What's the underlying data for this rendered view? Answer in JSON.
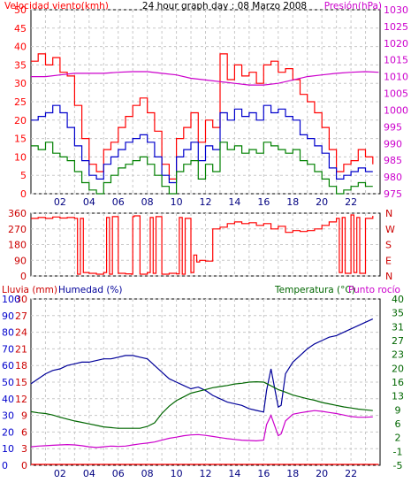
{
  "chart_data": [
    {
      "type": "line",
      "title": "24 hour graph day : 08 Marzo 2008",
      "ylabel": "Velocidad viento(kmh)",
      "y2label": "Presión(hPa)",
      "x_ticks": [
        "02",
        "04",
        "06",
        "08",
        "10",
        "12",
        "14",
        "16",
        "18",
        "20",
        "22"
      ],
      "xlim": [
        0,
        24
      ],
      "ylim": [
        0,
        50
      ],
      "y_ticks": [
        "0",
        "5",
        "10",
        "15",
        "20",
        "25",
        "30",
        "35",
        "40",
        "45",
        "50"
      ],
      "y2lim": [
        975,
        1030
      ],
      "y2_ticks": [
        "975",
        "980",
        "985",
        "990",
        "995",
        "1000",
        "1005",
        "1010",
        "1015",
        "1020",
        "1025",
        "1030"
      ],
      "grid": true,
      "colors": {
        "gust": "#ff0000",
        "avg": "#0000cc",
        "min": "#008000",
        "pressure": "#cc00cc"
      },
      "series": [
        {
          "axis": "left",
          "color": "#ff0000",
          "x": [
            0,
            0.5,
            1,
            1.5,
            2,
            2.5,
            3,
            3.5,
            4,
            4.5,
            5,
            5.5,
            6,
            6.5,
            7,
            7.5,
            8,
            8.5,
            9,
            9.5,
            10,
            10.5,
            11,
            11.5,
            12,
            12.5,
            13,
            13.5,
            14,
            14.5,
            15,
            15.5,
            16,
            16.5,
            17,
            17.5,
            18,
            18.5,
            19,
            19.5,
            20,
            20.5,
            21,
            21.5,
            22,
            22.5,
            23,
            23.5
          ],
          "values": [
            36,
            38,
            35,
            37,
            33,
            32,
            24,
            15,
            8,
            6,
            12,
            14,
            18,
            21,
            24,
            26,
            22,
            17,
            8,
            4,
            15,
            18,
            22,
            14,
            20,
            18,
            38,
            31,
            35,
            32,
            33,
            30,
            35,
            36,
            33,
            34,
            31,
            27,
            25,
            22,
            18,
            12,
            6,
            8,
            9,
            12,
            10,
            8
          ]
        },
        {
          "axis": "left",
          "color": "#0000cc",
          "x": [
            0,
            0.5,
            1,
            1.5,
            2,
            2.5,
            3,
            3.5,
            4,
            4.5,
            5,
            5.5,
            6,
            6.5,
            7,
            7.5,
            8,
            8.5,
            9,
            9.5,
            10,
            10.5,
            11,
            11.5,
            12,
            12.5,
            13,
            13.5,
            14,
            14.5,
            15,
            15.5,
            16,
            16.5,
            17,
            17.5,
            18,
            18.5,
            19,
            19.5,
            20,
            20.5,
            21,
            21.5,
            22,
            22.5,
            23,
            23.5
          ],
          "values": [
            20,
            21,
            22,
            24,
            22,
            18,
            13,
            9,
            5,
            4,
            8,
            10,
            12,
            14,
            15,
            16,
            14,
            10,
            5,
            3,
            10,
            12,
            14,
            9,
            13,
            12,
            22,
            20,
            23,
            21,
            22,
            20,
            24,
            22,
            23,
            21,
            20,
            16,
            15,
            13,
            11,
            7,
            4,
            5,
            6,
            7,
            6,
            6
          ]
        },
        {
          "axis": "left",
          "color": "#008000",
          "x": [
            0,
            0.5,
            1,
            1.5,
            2,
            2.5,
            3,
            3.5,
            4,
            4.5,
            5,
            5.5,
            6,
            6.5,
            7,
            7.5,
            8,
            8.5,
            9,
            9.5,
            10,
            10.5,
            11,
            11.5,
            12,
            12.5,
            13,
            13.5,
            14,
            14.5,
            15,
            15.5,
            16,
            16.5,
            17,
            17.5,
            18,
            18.5,
            19,
            19.5,
            20,
            20.5,
            21,
            21.5,
            22,
            22.5,
            23,
            23.5
          ],
          "values": [
            13,
            12,
            14,
            11,
            10,
            9,
            6,
            3,
            1,
            0,
            3,
            5,
            7,
            8,
            9,
            10,
            8,
            5,
            2,
            0,
            6,
            8,
            9,
            4,
            8,
            6,
            14,
            12,
            13,
            11,
            12,
            11,
            14,
            13,
            12,
            11,
            12,
            9,
            8,
            6,
            4,
            2,
            0,
            1,
            2,
            3,
            2,
            2
          ]
        },
        {
          "axis": "right",
          "color": "#cc00cc",
          "x": [
            0,
            1,
            2,
            3,
            4,
            5,
            6,
            7,
            8,
            9,
            10,
            11,
            12,
            13,
            14,
            15,
            16,
            17,
            18,
            19,
            20,
            21,
            22,
            23,
            23.9
          ],
          "values": [
            1010,
            1010,
            1010.5,
            1011,
            1011,
            1011,
            1011.3,
            1011.5,
            1011.5,
            1011,
            1010.5,
            1009.5,
            1009,
            1008.5,
            1008,
            1007.5,
            1007.5,
            1008,
            1009,
            1010,
            1010.5,
            1011,
            1011.3,
            1011.5,
            1011.3
          ]
        }
      ]
    },
    {
      "type": "scatter",
      "ylim": [
        0,
        360
      ],
      "y_ticks": [
        "0",
        "90",
        "180",
        "270",
        "360"
      ],
      "compass": [
        "N",
        "W",
        "S",
        "E",
        "N"
      ],
      "x_ticks": [],
      "grid": true,
      "series": [
        {
          "color": "#ff0000",
          "x": [
            0,
            0.5,
            1,
            1.5,
            2,
            2.5,
            3,
            3.2,
            3.4,
            3.6,
            4,
            4.5,
            5,
            5.2,
            5.4,
            5.6,
            6,
            6.5,
            6.9,
            7,
            7.1,
            7.5,
            8,
            8.2,
            8.4,
            8.6,
            9,
            9.5,
            10,
            10.2,
            10.4,
            10.6,
            11,
            11.2,
            11.4,
            11.6,
            12,
            12.5,
            13,
            13.5,
            14,
            14.5,
            15,
            15.5,
            16,
            16.5,
            17,
            17.5,
            18,
            18.5,
            19,
            19.5,
            20,
            20.5,
            21,
            21.2,
            21.4,
            21.6,
            22,
            22.2,
            22.4,
            22.6,
            23,
            23.5
          ],
          "values": [
            330,
            335,
            330,
            338,
            332,
            335,
            330,
            10,
            330,
            20,
            15,
            10,
            20,
            335,
            10,
            340,
            15,
            12,
            10,
            340,
            345,
            10,
            20,
            335,
            15,
            340,
            10,
            15,
            12,
            335,
            10,
            330,
            20,
            120,
            80,
            90,
            85,
            270,
            280,
            300,
            310,
            300,
            305,
            290,
            300,
            270,
            285,
            250,
            260,
            255,
            260,
            270,
            290,
            310,
            330,
            20,
            335,
            15,
            350,
            20,
            335,
            15,
            330,
            345
          ]
        }
      ]
    },
    {
      "type": "line",
      "ylabel": "Lluvia (mm)",
      "ylabel2": "Humedad (%)",
      "y2label": "Temperatura (°C)",
      "y2label2": "Punto rocío",
      "xlim": [
        0,
        24
      ],
      "x_ticks": [
        "02",
        "04",
        "06",
        "08",
        "10",
        "12",
        "14",
        "16",
        "18",
        "20",
        "22"
      ],
      "rain_ticks": [
        "0",
        "3",
        "6",
        "9",
        "12",
        "15",
        "18",
        "21",
        "24",
        "27",
        "30"
      ],
      "humidity_ticks": [
        "0",
        "10",
        "20",
        "30",
        "40",
        "50",
        "60",
        "70",
        "80",
        "90",
        "100"
      ],
      "humidity_lim": [
        0,
        100
      ],
      "temp_ticks": [
        "-5",
        "-1",
        "2",
        "6",
        "9",
        "13",
        "16",
        "20",
        "23",
        "27",
        "31",
        "35",
        "40"
      ],
      "temp_lim": [
        -5,
        40
      ],
      "grid": true,
      "series": [
        {
          "axis": "humidity",
          "color": "#000099",
          "x": [
            0,
            0.5,
            1,
            1.5,
            2,
            2.5,
            3,
            3.5,
            4,
            4.5,
            5,
            5.5,
            6,
            6.5,
            7,
            7.5,
            8,
            8.5,
            9,
            9.5,
            10,
            10.5,
            11,
            11.5,
            12,
            12.5,
            13,
            13.5,
            14,
            14.5,
            15,
            15.5,
            16,
            16.2,
            16.5,
            17,
            17.2,
            17.5,
            18,
            18.5,
            19,
            19.5,
            20,
            20.5,
            21,
            21.5,
            22,
            22.5,
            23,
            23.5
          ],
          "values": [
            49,
            52,
            55,
            57,
            58,
            60,
            61,
            62,
            62,
            63,
            64,
            64,
            65,
            66,
            66,
            65,
            64,
            60,
            56,
            52,
            50,
            48,
            46,
            47,
            45,
            42,
            40,
            38,
            37,
            36,
            34,
            33,
            32,
            45,
            58,
            35,
            36,
            55,
            62,
            66,
            70,
            73,
            75,
            77,
            78,
            80,
            82,
            84,
            86,
            88
          ]
        },
        {
          "axis": "temp",
          "color": "#006600",
          "x": [
            0,
            0.5,
            1,
            1.5,
            2,
            2.5,
            3,
            3.5,
            4,
            4.5,
            5,
            5.5,
            6,
            6.5,
            7,
            7.5,
            8,
            8.5,
            9,
            9.5,
            10,
            10.5,
            11,
            11.5,
            12,
            12.5,
            13,
            13.5,
            14,
            14.5,
            15,
            15.5,
            16,
            16.5,
            17,
            17.5,
            18,
            18.5,
            19,
            19.5,
            20,
            20.5,
            21,
            21.5,
            22,
            22.5,
            23,
            23.5
          ],
          "values": [
            9.5,
            9.2,
            9,
            8.6,
            8,
            7.5,
            7,
            6.6,
            6.2,
            5.8,
            5.4,
            5.2,
            5,
            5,
            5,
            5,
            5.5,
            6.5,
            9,
            11,
            12.5,
            13.5,
            14.5,
            15,
            15.5,
            16,
            16.3,
            16.6,
            17,
            17.2,
            17.5,
            17.6,
            17.5,
            16.5,
            15.5,
            14.8,
            14,
            13.5,
            13,
            12.6,
            12,
            11.6,
            11.2,
            10.8,
            10.5,
            10.2,
            10,
            9.8
          ]
        },
        {
          "axis": "temp",
          "color": "#cc00cc",
          "x": [
            0,
            0.5,
            1,
            1.5,
            2,
            2.5,
            3,
            3.5,
            4,
            4.5,
            5,
            5.5,
            6,
            6.5,
            7,
            7.5,
            8,
            8.5,
            9,
            9.5,
            10,
            10.5,
            11,
            11.5,
            12,
            12.5,
            13,
            13.5,
            14,
            14.5,
            15,
            15.5,
            16,
            16.2,
            16.5,
            17,
            17.2,
            17.5,
            18,
            18.5,
            19,
            19.5,
            20,
            20.5,
            21,
            21.5,
            22,
            22.5,
            23,
            23.5
          ],
          "values": [
            0,
            0.2,
            0.3,
            0.4,
            0.5,
            0.6,
            0.5,
            0.3,
            0,
            -0.2,
            0,
            0.2,
            0.1,
            0.2,
            0.5,
            0.8,
            1,
            1.3,
            1.8,
            2.3,
            2.6,
            3,
            3.2,
            3.3,
            3.1,
            2.8,
            2.5,
            2.2,
            2,
            1.8,
            1.7,
            1.6,
            1.8,
            6,
            8.5,
            3,
            3.5,
            7,
            8.8,
            9.2,
            9.5,
            9.8,
            9.6,
            9.3,
            9,
            8.6,
            8.2,
            8,
            8,
            8.1
          ]
        },
        {
          "axis": "rain",
          "color": "#ff0000",
          "x": [
            0,
            23.9
          ],
          "values": [
            0,
            0
          ]
        }
      ]
    }
  ]
}
